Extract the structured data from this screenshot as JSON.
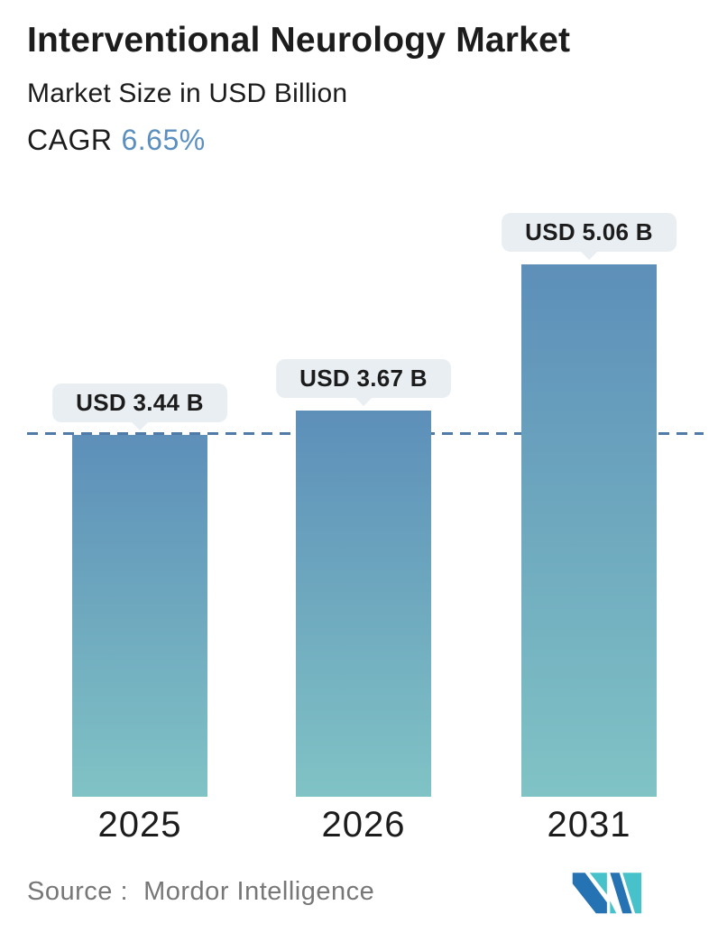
{
  "header": {
    "title": "Interventional Neurology Market",
    "subtitle": "Market Size in USD Billion",
    "cagr_label": "CAGR",
    "cagr_value": "6.65%"
  },
  "chart_data": {
    "type": "bar",
    "categories": [
      "2025",
      "2026",
      "2031"
    ],
    "values": [
      3.44,
      3.67,
      5.06
    ],
    "bar_labels": [
      "USD 3.44 B",
      "USD 3.67 B",
      "USD 5.06 B"
    ],
    "title": "Interventional Neurology Market",
    "subtitle": "Market Size in USD Billion",
    "ylabel": "Market Size (USD Billion)",
    "ylim": [
      0,
      5.06
    ],
    "grid": false,
    "legend": "none",
    "reference_line_value": 3.44,
    "reference_line_style": "dashed"
  },
  "footer": {
    "source": "Source :  Mordor Intelligence",
    "logo": "mordor-intelligence-logo"
  },
  "colors": {
    "text_dark": "#1c1c1c",
    "accent_blue": "#5b8fc0",
    "bar_gradient_top": "#5d8fb9",
    "bar_gradient_bottom": "#80c3c5",
    "reference_line": "#4f7ba6",
    "pill_background": "#e8eef1",
    "source_gray": "#777777",
    "logo_dark_blue": "#2673b4",
    "logo_teal": "#47c2cb"
  }
}
